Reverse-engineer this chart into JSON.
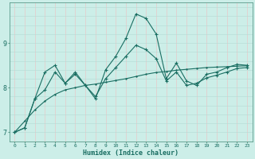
{
  "xlabel": "Humidex (Indice chaleur)",
  "background_color": "#cceee8",
  "grid_color_h": "#b8ddd8",
  "grid_color_v": "#e8c8c8",
  "line_color": "#1a6e62",
  "x": [
    0,
    1,
    2,
    3,
    4,
    5,
    6,
    7,
    8,
    9,
    10,
    11,
    12,
    13,
    14,
    15,
    16,
    17,
    18,
    19,
    20,
    21,
    22,
    23
  ],
  "y_main": [
    7.0,
    7.1,
    7.75,
    8.35,
    8.5,
    8.1,
    8.35,
    8.05,
    7.75,
    8.4,
    8.7,
    9.1,
    9.65,
    9.55,
    9.2,
    8.2,
    8.55,
    8.15,
    8.05,
    8.3,
    8.35,
    8.45,
    8.52,
    8.5
  ],
  "y_upper": [
    7.0,
    7.1,
    7.75,
    7.95,
    8.35,
    8.1,
    8.3,
    8.05,
    7.8,
    8.2,
    8.45,
    8.7,
    8.95,
    8.85,
    8.65,
    8.15,
    8.35,
    8.05,
    8.1,
    8.22,
    8.28,
    8.35,
    8.43,
    8.45
  ],
  "y_trend": [
    7.0,
    7.25,
    7.5,
    7.7,
    7.85,
    7.95,
    8.0,
    8.05,
    8.08,
    8.12,
    8.16,
    8.2,
    8.25,
    8.3,
    8.34,
    8.36,
    8.39,
    8.41,
    8.43,
    8.45,
    8.46,
    8.47,
    8.48,
    8.49
  ],
  "ylim": [
    6.8,
    9.9
  ],
  "yticks": [
    7,
    8,
    9
  ],
  "xticks": [
    0,
    1,
    2,
    3,
    4,
    5,
    6,
    7,
    8,
    9,
    10,
    11,
    12,
    13,
    14,
    15,
    16,
    17,
    18,
    19,
    20,
    21,
    22,
    23
  ],
  "figsize": [
    3.2,
    2.0
  ],
  "dpi": 100
}
